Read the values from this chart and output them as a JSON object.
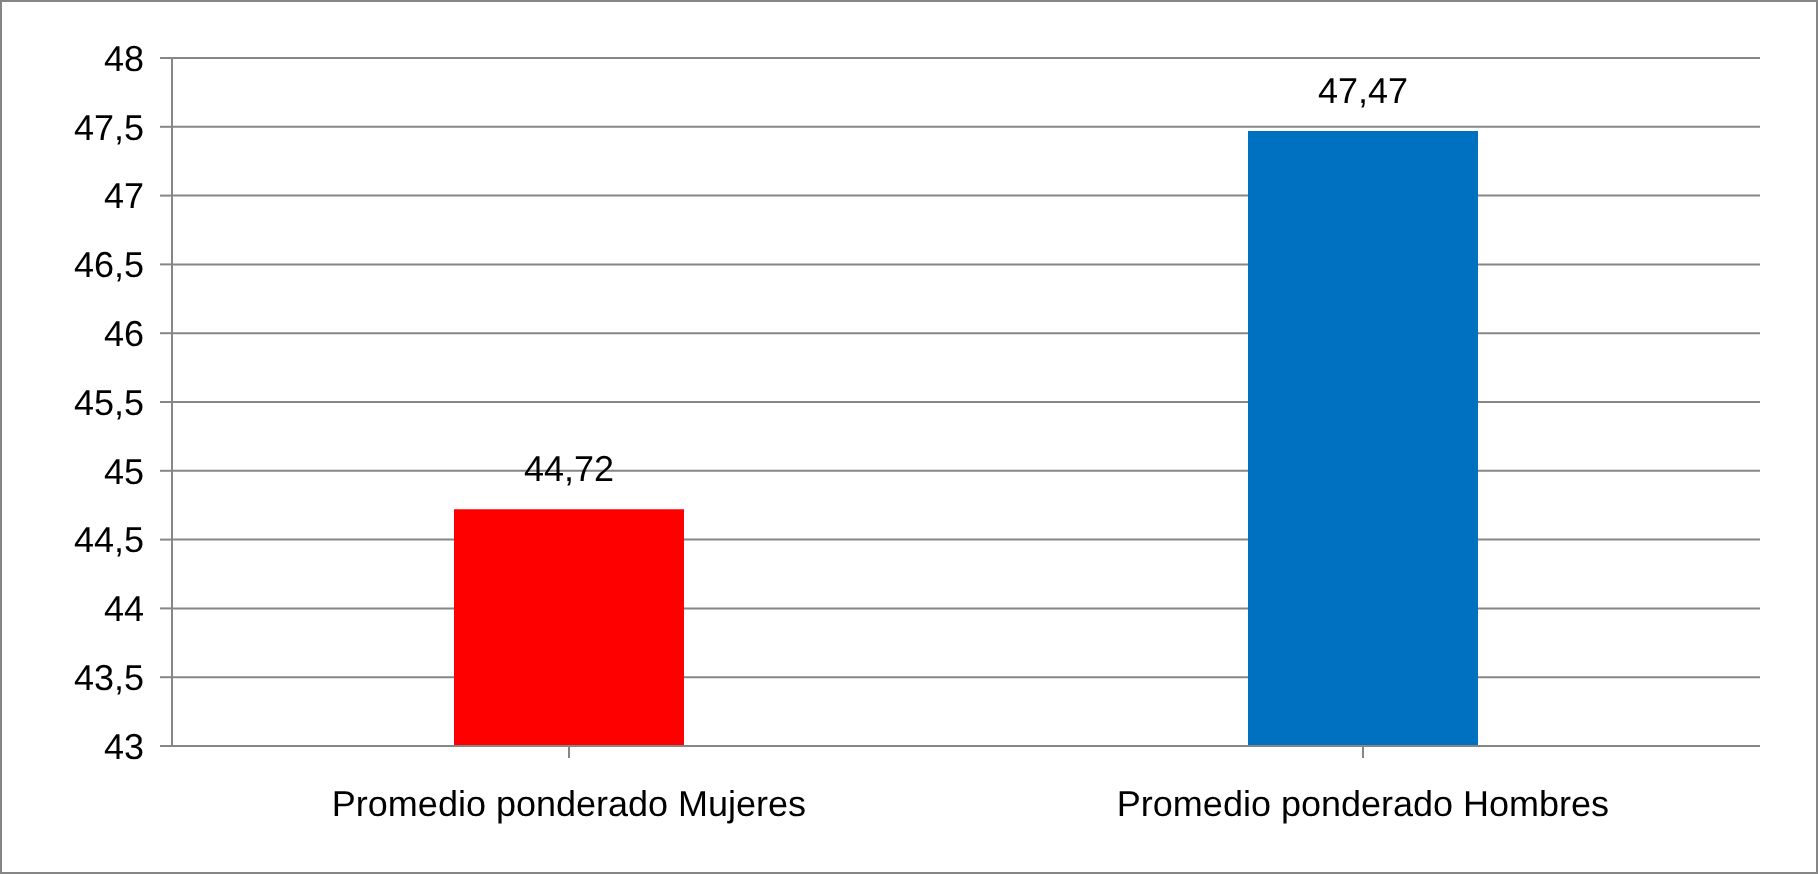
{
  "chart_data": {
    "type": "bar",
    "categories": [
      "Promedio ponderado Mujeres",
      "Promedio ponderado Hombres"
    ],
    "values": [
      44.72,
      47.47
    ],
    "colors": [
      "#ff0000",
      "#0070c0"
    ],
    "value_labels": [
      "44,72",
      "47,47"
    ],
    "ylim": [
      43,
      48
    ],
    "yticks": [
      43,
      {
        "value": 43.5,
        "label": "43,5"
      },
      44,
      {
        "value": 44.5,
        "label": "44,5"
      },
      45,
      {
        "value": 45.5,
        "label": "45,5"
      },
      46,
      {
        "value": 46.5,
        "label": "46,5"
      },
      47,
      {
        "value": 47.5,
        "label": "47,5"
      },
      48
    ],
    "grid": "y",
    "legend": false
  }
}
